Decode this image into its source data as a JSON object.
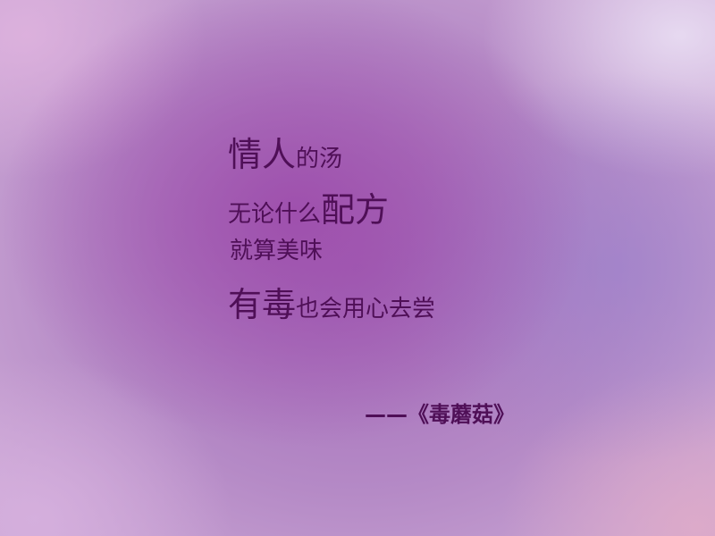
{
  "poem": {
    "line1": {
      "big": "情人",
      "small": "的汤"
    },
    "line2": {
      "small": "无论什么",
      "big": "配方"
    },
    "line3": {
      "small": "就算美味"
    },
    "line4": {
      "big": "有毒",
      "small": "也会用心去尝"
    }
  },
  "attribution": "——《毒蘑菇》",
  "colors": {
    "text": "#4f0f57",
    "background_center": "#9e4eac",
    "background_edge": "#e8dcf2"
  }
}
